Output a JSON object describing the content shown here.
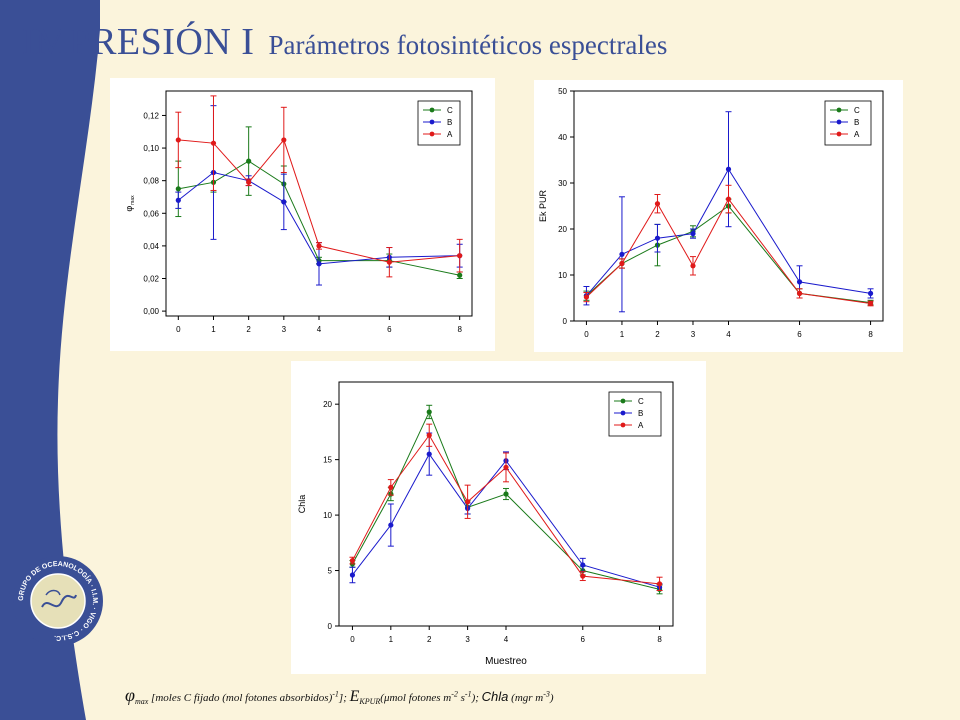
{
  "slide": {
    "title": "IMPRESIÓN I",
    "subtitle": "Parámetros fotosintéticos espectrales",
    "colors": {
      "band": "#3a4f96",
      "background": "#fbf4dc",
      "title": "#3a4f96"
    }
  },
  "logo": {
    "icon": "circular-seal",
    "text": "GRUPO DE OCEANOLOGÍA · I.I.M. · VIGO · C.S.I.C."
  },
  "caption": {
    "phi": "φ",
    "max_sub": "max",
    "part1": " [moles C fijado (mol fotones absorbidos)",
    "sup1": "-1",
    "part2": "]; ",
    "e": "E",
    "kpur_sub": "KPUR",
    "part3": "(μmol fotones m",
    "sup2": "-2",
    "part4": " s",
    "sup3": "-1",
    "part5": "); ",
    "chla": "Chla",
    "part6": " (mgr m",
    "sup4": "-3",
    "part7": ")"
  },
  "chart_data": [
    {
      "id": "phi",
      "type": "line",
      "ylabel": "φ",
      "ylabel_sub": "max",
      "xlabel": "",
      "x": [
        0,
        1,
        2,
        3,
        4,
        6,
        8
      ],
      "xticks": [
        "0",
        "1",
        "2",
        "3",
        "4",
        "6",
        "8"
      ],
      "xlim": [
        -0.35,
        8.35
      ],
      "ylim": [
        -0.003,
        0.135
      ],
      "yticks": [
        0.0,
        0.02,
        0.04,
        0.06,
        0.08,
        0.1,
        0.12
      ],
      "yticklabels": [
        "0,00",
        "0,02",
        "0,04",
        "0,06",
        "0,08",
        "0,10",
        "0,12"
      ],
      "legend_position": "top-right",
      "series": [
        {
          "name": "C",
          "color": "#1a7a1a",
          "values": [
            0.075,
            0.079,
            0.092,
            0.078,
            0.031,
            0.031,
            0.022
          ],
          "err": [
            0.017,
            0.006,
            0.021,
            0.011,
            0.002,
            0.004,
            0.002
          ]
        },
        {
          "name": "B",
          "color": "#1a1acc",
          "values": [
            0.068,
            0.085,
            0.08,
            0.067,
            0.029,
            0.033,
            0.034
          ],
          "err": [
            0.005,
            0.041,
            0.003,
            0.017,
            0.013,
            0.006,
            0.007
          ]
        },
        {
          "name": "A",
          "color": "#e01a1a",
          "values": [
            0.105,
            0.103,
            0.079,
            0.105,
            0.04,
            0.03,
            0.034
          ],
          "err": [
            0.017,
            0.029,
            0.002,
            0.02,
            0.002,
            0.009,
            0.01
          ]
        }
      ]
    },
    {
      "id": "ek",
      "type": "line",
      "ylabel": "Ek PUR",
      "xlabel": "",
      "x": [
        0,
        1,
        2,
        3,
        4,
        6,
        8
      ],
      "xticks": [
        "0",
        "1",
        "2",
        "3",
        "4",
        "6",
        "8"
      ],
      "xlim": [
        -0.35,
        8.35
      ],
      "ylim": [
        0,
        50
      ],
      "yticks": [
        0,
        10,
        20,
        30,
        40,
        50
      ],
      "yticklabels": [
        "0",
        "10",
        "20",
        "30",
        "40",
        "50"
      ],
      "legend_position": "top-right",
      "series": [
        {
          "name": "C",
          "color": "#1a7a1a",
          "values": [
            5.5,
            12.5,
            16.5,
            19.5,
            25.0,
            6.0,
            4.0
          ],
          "err": [
            1.0,
            1.0,
            4.5,
            1.2,
            1.5,
            1.0,
            0.5
          ]
        },
        {
          "name": "B",
          "color": "#1a1acc",
          "values": [
            5.5,
            14.5,
            18.0,
            19.0,
            33.0,
            8.5,
            6.0
          ],
          "err": [
            2.0,
            12.5,
            3.0,
            1.0,
            12.5,
            3.5,
            1.0
          ]
        },
        {
          "name": "A",
          "color": "#e01a1a",
          "values": [
            5.2,
            12.5,
            25.5,
            12.0,
            26.5,
            6.0,
            3.8
          ],
          "err": [
            1.0,
            1.0,
            2.0,
            2.0,
            3.0,
            1.0,
            0.5
          ]
        }
      ]
    },
    {
      "id": "chla",
      "type": "line",
      "ylabel": "Chla",
      "xlabel": "Muestreo",
      "x": [
        0,
        1,
        2,
        3,
        4,
        6,
        8
      ],
      "xticks": [
        "0",
        "1",
        "2",
        "3",
        "4",
        "6",
        "8"
      ],
      "xlim": [
        -0.35,
        8.35
      ],
      "ylim": [
        0,
        22
      ],
      "yticks": [
        0,
        5,
        10,
        15,
        20
      ],
      "yticklabels": [
        "0",
        "5",
        "10",
        "15",
        "20"
      ],
      "legend_position": "top-right",
      "series": [
        {
          "name": "C",
          "color": "#1a7a1a",
          "values": [
            5.6,
            11.9,
            19.3,
            10.7,
            11.9,
            5.0,
            3.3
          ],
          "err": [
            0.3,
            0.6,
            0.6,
            0.6,
            0.5,
            0.4,
            0.4
          ]
        },
        {
          "name": "B",
          "color": "#1a1acc",
          "values": [
            4.6,
            9.1,
            15.5,
            10.6,
            14.9,
            5.5,
            3.5
          ],
          "err": [
            0.7,
            1.9,
            1.9,
            0.5,
            0.8,
            0.6,
            0.3
          ]
        },
        {
          "name": "A",
          "color": "#e01a1a",
          "values": [
            5.9,
            12.5,
            17.2,
            11.2,
            14.3,
            4.5,
            3.8
          ],
          "err": [
            0.3,
            0.7,
            1.0,
            1.5,
            1.3,
            0.4,
            0.6
          ]
        }
      ]
    }
  ]
}
